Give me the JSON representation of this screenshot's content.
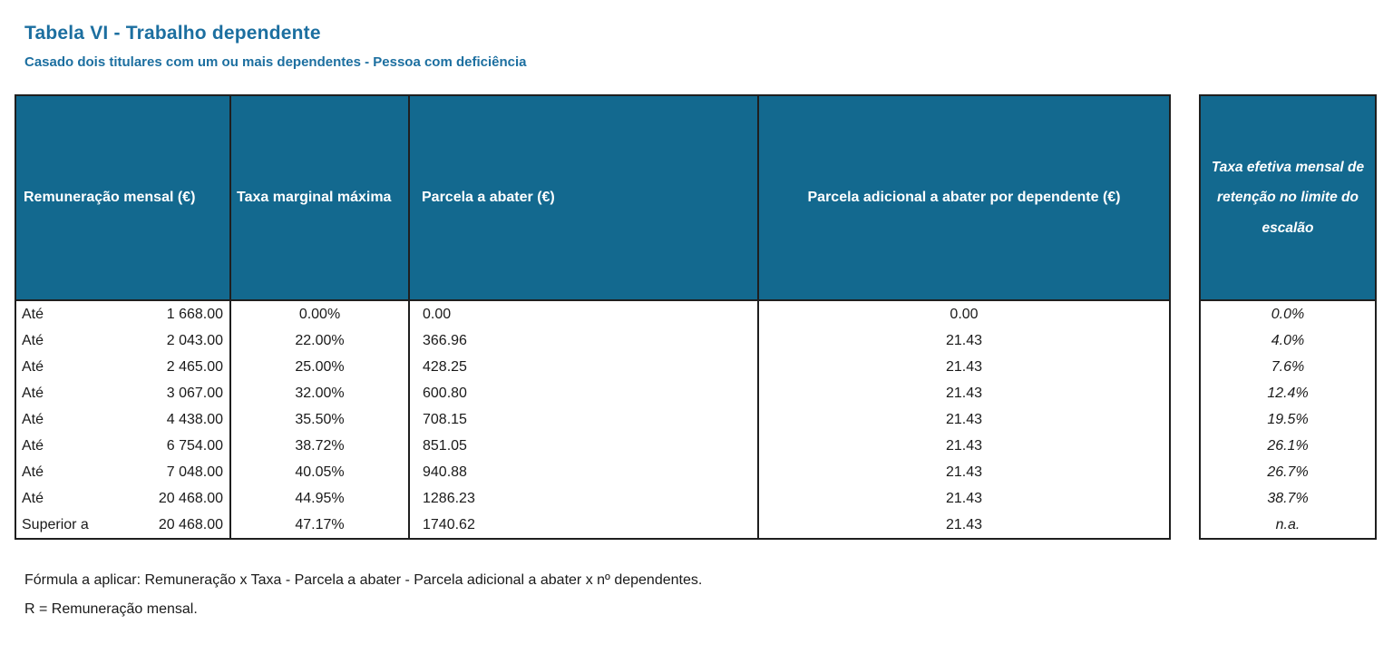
{
  "page": {
    "title": "Tabela VI - Trabalho dependente",
    "subtitle": "Casado dois titulares com um ou mais dependentes - Pessoa com deficiência"
  },
  "table": {
    "headers": {
      "remuneracao": "Remuneração mensal (€)",
      "taxa_marginal": "Taxa marginal máxima",
      "parcela": "Parcela a abater (€)",
      "parcela_adicional": "Parcela adicional a abater por dependente (€)",
      "taxa_efetiva": "Taxa efetiva mensal de retenção no limite do escalão"
    },
    "rows": [
      {
        "prefix": "Até",
        "limit": "1 668.00",
        "rate": "0.00%",
        "deduction": "0.00",
        "dependent_deduction": "0.00",
        "effective_rate": "0.0%"
      },
      {
        "prefix": "Até",
        "limit": "2 043.00",
        "rate": "22.00%",
        "deduction": "366.96",
        "dependent_deduction": "21.43",
        "effective_rate": "4.0%"
      },
      {
        "prefix": "Até",
        "limit": "2 465.00",
        "rate": "25.00%",
        "deduction": "428.25",
        "dependent_deduction": "21.43",
        "effective_rate": "7.6%"
      },
      {
        "prefix": "Até",
        "limit": "3 067.00",
        "rate": "32.00%",
        "deduction": "600.80",
        "dependent_deduction": "21.43",
        "effective_rate": "12.4%"
      },
      {
        "prefix": "Até",
        "limit": "4 438.00",
        "rate": "35.50%",
        "deduction": "708.15",
        "dependent_deduction": "21.43",
        "effective_rate": "19.5%"
      },
      {
        "prefix": "Até",
        "limit": "6 754.00",
        "rate": "38.72%",
        "deduction": "851.05",
        "dependent_deduction": "21.43",
        "effective_rate": "26.1%"
      },
      {
        "prefix": "Até",
        "limit": "7 048.00",
        "rate": "40.05%",
        "deduction": "940.88",
        "dependent_deduction": "21.43",
        "effective_rate": "26.7%"
      },
      {
        "prefix": "Até",
        "limit": "20 468.00",
        "rate": "44.95%",
        "deduction": "1286.23",
        "dependent_deduction": "21.43",
        "effective_rate": "38.7%"
      },
      {
        "prefix": "Superior a",
        "limit": "20 468.00",
        "rate": "47.17%",
        "deduction": "1740.62",
        "dependent_deduction": "21.43",
        "effective_rate": "n.a."
      }
    ]
  },
  "footer": {
    "formula": "Fórmula a aplicar: Remuneração x Taxa - Parcela a abater - Parcela adicional a abater x nº dependentes.",
    "note": "R = Remuneração mensal."
  },
  "colors": {
    "header_fill": "#13698F",
    "title_color": "#1C6FA0",
    "border": "#1f1f1f"
  }
}
